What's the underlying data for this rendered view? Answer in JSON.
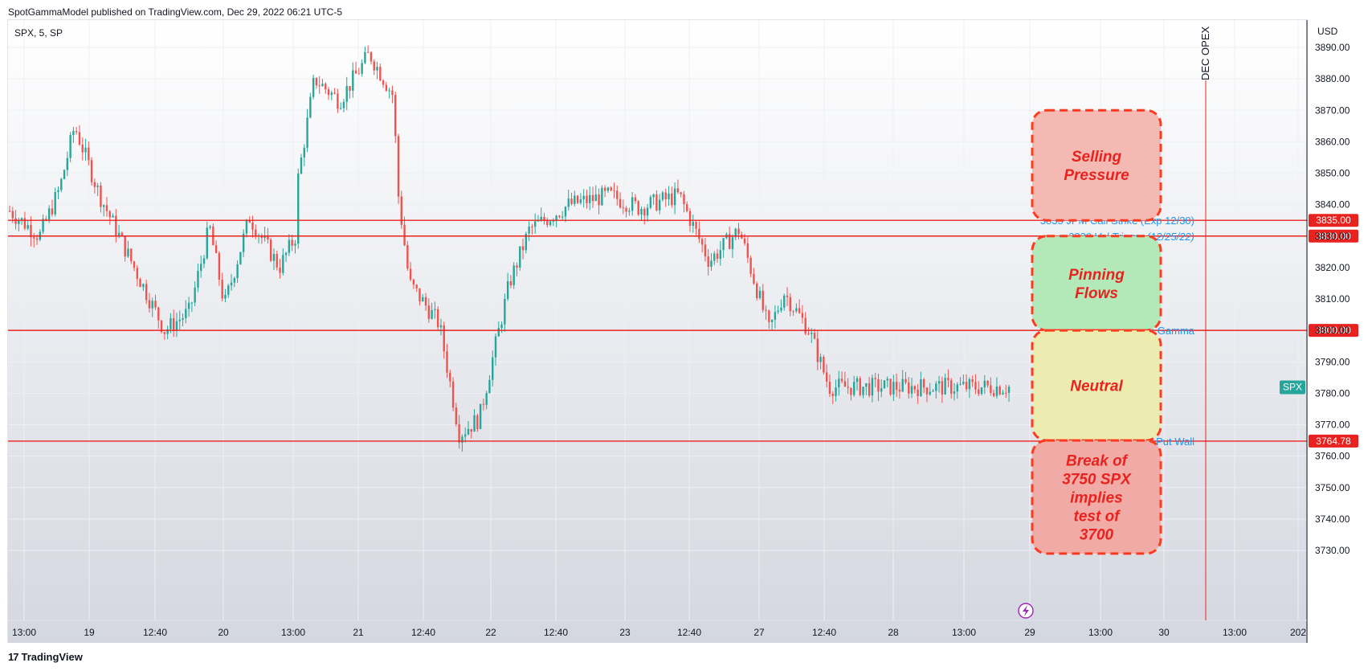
{
  "header": {
    "published": "SpotGammaModel published on TradingView.com, Dec 29, 2022 06:21 UTC-5"
  },
  "symbol_label": "SPX, 5, SP",
  "footer": {
    "brand": "TradingView",
    "logo": "17"
  },
  "colors": {
    "up": "#26a69a",
    "down": "#ef5350",
    "level_line": "#e8231f",
    "label_text": "#2196f3",
    "grid": "#eef0f4"
  },
  "chart_data": {
    "type": "candlestick",
    "xlabel": "",
    "ylabel": "",
    "currency": "USD",
    "ylim": [
      3723,
      3897
    ],
    "y_ticks": [
      3730,
      3740,
      3750,
      3760,
      3770,
      3780,
      3790,
      3800,
      3810,
      3820,
      3830,
      3840,
      3850,
      3860,
      3870,
      3880,
      3890
    ],
    "x_ticks": [
      "13:00",
      "19",
      "12:40",
      "20",
      "13:00",
      "21",
      "12:40",
      "22",
      "12:40",
      "23",
      "12:40",
      "27",
      "12:40",
      "28",
      "13:00",
      "29",
      "13:00",
      "30",
      "13:00",
      "202"
    ],
    "price_path": [
      {
        "t": 0,
        "p": 3838
      },
      {
        "t": 0.03,
        "p": 3830
      },
      {
        "t": 0.05,
        "p": 3845
      },
      {
        "t": 0.065,
        "p": 3865
      },
      {
        "t": 0.09,
        "p": 3843
      },
      {
        "t": 0.12,
        "p": 3823
      },
      {
        "t": 0.155,
        "p": 3800
      },
      {
        "t": 0.18,
        "p": 3806
      },
      {
        "t": 0.2,
        "p": 3833
      },
      {
        "t": 0.215,
        "p": 3808
      },
      {
        "t": 0.24,
        "p": 3836
      },
      {
        "t": 0.27,
        "p": 3820
      },
      {
        "t": 0.286,
        "p": 3830
      },
      {
        "t": 0.287,
        "p": 3845
      },
      {
        "t": 0.305,
        "p": 3880
      },
      {
        "t": 0.33,
        "p": 3873
      },
      {
        "t": 0.36,
        "p": 3888
      },
      {
        "t": 0.385,
        "p": 3874
      },
      {
        "t": 0.387,
        "p": 3848
      },
      {
        "t": 0.4,
        "p": 3815
      },
      {
        "t": 0.43,
        "p": 3802
      },
      {
        "t": 0.45,
        "p": 3767
      },
      {
        "t": 0.47,
        "p": 3772
      },
      {
        "t": 0.5,
        "p": 3815
      },
      {
        "t": 0.52,
        "p": 3832
      },
      {
        "t": 0.56,
        "p": 3840
      },
      {
        "t": 0.6,
        "p": 3843
      },
      {
        "t": 0.63,
        "p": 3839
      },
      {
        "t": 0.67,
        "p": 3843
      },
      {
        "t": 0.7,
        "p": 3822
      },
      {
        "t": 0.73,
        "p": 3832
      },
      {
        "t": 0.76,
        "p": 3800
      },
      {
        "t": 0.775,
        "p": 3812
      },
      {
        "t": 0.8,
        "p": 3800
      },
      {
        "t": 0.82,
        "p": 3782
      }
    ],
    "levels": [
      {
        "price": 3835.0,
        "label": "3835 JPM Call Strike (Exp 12/30)",
        "badge": "3835.00"
      },
      {
        "price": 3830.0,
        "label": "3830 Vol Trigger (12/25/22)",
        "badge": "3830.00"
      },
      {
        "price": 3800.0,
        "label": "3800 Large Gamma",
        "badge": "3800.00"
      },
      {
        "price": 3764.78,
        "label": "SPX 3775/SPY375 Put Wall",
        "badge": "3764.78"
      }
    ],
    "last_price_tag": "SPX",
    "event": {
      "label": "DEC OPEX"
    },
    "zones": [
      {
        "label": "Selling Pressure",
        "top": 3870,
        "bottom": 3835,
        "fill": "#f4b9b3"
      },
      {
        "label": "Pinning Flows",
        "top": 3830,
        "bottom": 3800,
        "fill": "#b3e8b8"
      },
      {
        "label": "Neutral",
        "top": 3800,
        "bottom": 3765,
        "fill": "#ecebb0"
      },
      {
        "label": "Break of 3750 SPX implies test of 3700",
        "top": 3765,
        "bottom": 3729,
        "fill": "#f0aba6"
      }
    ]
  }
}
